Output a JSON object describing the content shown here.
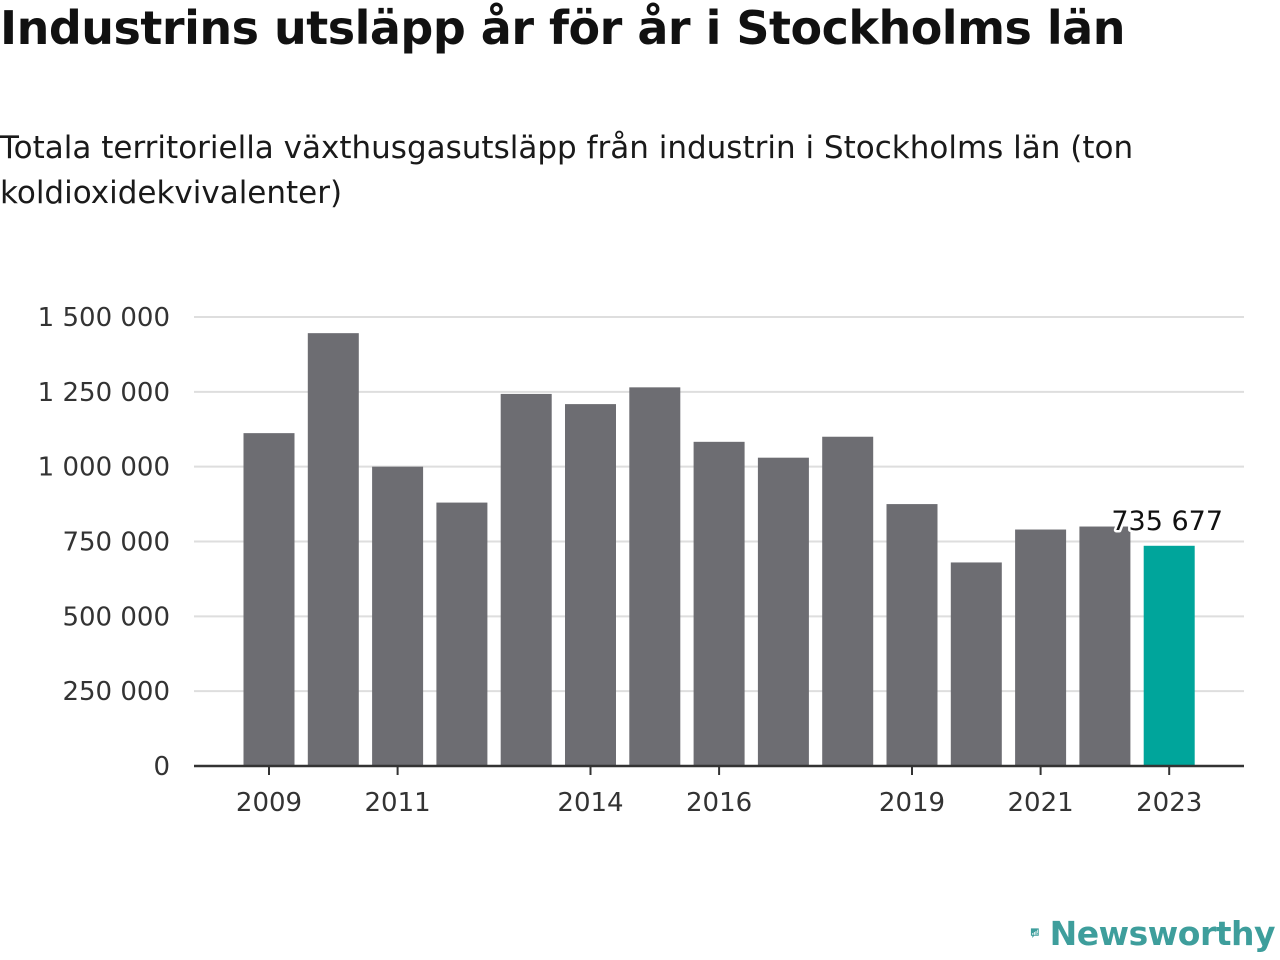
{
  "header": {
    "title": "Industrins utsläpp år för år i Stockholms län",
    "subtitle": "Totala territoriella växthusgasutsläpp från industrin i Stockholms län (ton koldioxidekvivalenter)"
  },
  "brand": {
    "name": "Newsworthy",
    "color": "#3e9e9c",
    "logo_icon": "bar-chart-speech-bubble-icon"
  },
  "chart_data": {
    "type": "bar",
    "categories": [
      "2009",
      "2010",
      "2011",
      "2012",
      "2013",
      "2014",
      "2015",
      "2016",
      "2017",
      "2018",
      "2019",
      "2020",
      "2021",
      "2022",
      "2023"
    ],
    "values": [
      1112000,
      1446000,
      1000000,
      880000,
      1243000,
      1209000,
      1265000,
      1083000,
      1030000,
      1100000,
      875000,
      680000,
      790000,
      800000,
      735677
    ],
    "ylim": [
      0,
      1500000
    ],
    "yticks": [
      0,
      250000,
      500000,
      750000,
      1000000,
      1250000,
      1500000
    ],
    "ytick_labels": [
      "0",
      "250 000",
      "500 000",
      "750 000",
      "1 000 000",
      "1 250 000",
      "1 500 000"
    ],
    "xtick_labels": [
      "2009",
      "2011",
      "2014",
      "2016",
      "2019",
      "2021",
      "2023"
    ],
    "highlight": {
      "category": "2023",
      "label": "735 677",
      "color": "#00a59b"
    },
    "bar_color": "#6d6d72",
    "grid": true,
    "legend": "none"
  }
}
